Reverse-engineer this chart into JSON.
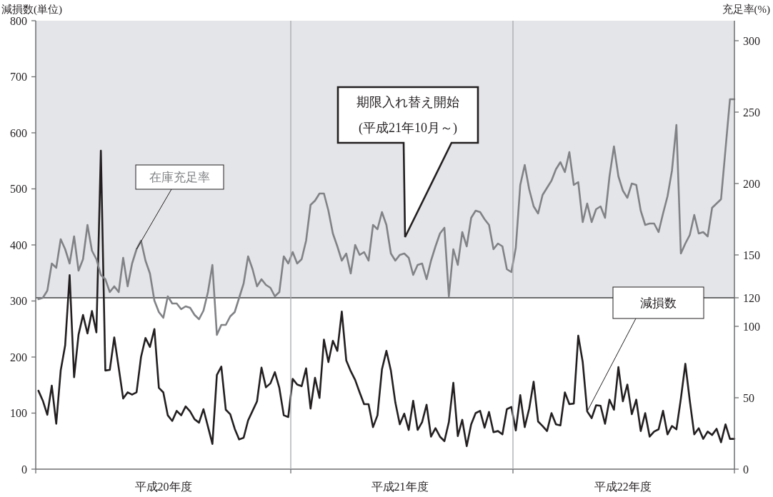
{
  "chart_data": {
    "type": "line",
    "ylabel": "減損数(単位)",
    "y2label": "充足率(%)",
    "categories": [
      null,
      null,
      null,
      null,
      null,
      null,
      null,
      null,
      null,
      null,
      null,
      null,
      null,
      null,
      null,
      null,
      null,
      null,
      null,
      null,
      null,
      null,
      null,
      null,
      null,
      null,
      null,
      null,
      "平成20年度",
      null,
      null,
      null,
      null,
      null,
      null,
      null,
      null,
      null,
      null,
      null,
      null,
      null,
      null,
      null,
      null,
      null,
      null,
      null,
      null,
      null,
      null,
      null,
      null,
      null,
      null,
      null,
      null,
      null,
      null,
      null,
      null,
      null,
      null,
      null,
      null,
      null,
      null,
      null,
      null,
      null,
      null,
      null,
      null,
      null,
      null,
      null,
      null,
      null,
      null,
      null,
      null,
      "平成21年度",
      null,
      null,
      null,
      null,
      null,
      null,
      null,
      null,
      null,
      null,
      null,
      null,
      null,
      null,
      null,
      null,
      null,
      null,
      null,
      null,
      null,
      null,
      null,
      null,
      null,
      null,
      null,
      null,
      null,
      null,
      null,
      null,
      null,
      null,
      null,
      null,
      null,
      null,
      null,
      null,
      null,
      null,
      null,
      null,
      null,
      null,
      null,
      null,
      null,
      "平成22年度",
      null,
      null,
      null,
      null,
      null,
      null,
      null,
      null,
      null,
      null,
      null,
      null,
      null,
      null,
      null,
      null,
      null,
      null,
      null,
      null,
      null,
      null,
      null,
      null,
      null
    ],
    "ylim": [
      0,
      800
    ],
    "yticks": [
      0,
      100,
      200,
      300,
      400,
      500,
      600,
      700,
      800
    ],
    "y2lim": [
      0,
      314
    ],
    "y2ticks": [
      0,
      50,
      100,
      120,
      150,
      200,
      250,
      300
    ],
    "bands": [
      {
        "axis": "y2",
        "from": 120,
        "to": 314,
        "color": "#e4e5e8"
      }
    ],
    "ref_lines": [
      {
        "axis": "y2",
        "value": 120,
        "color": "#6d6e70"
      }
    ],
    "series": [
      {
        "name": "減損数",
        "color": "#231f20",
        "values": [
          140,
          122,
          97,
          149,
          81,
          176,
          221,
          346,
          164,
          240,
          275,
          242,
          282,
          244,
          568,
          176,
          177,
          235,
          181,
          126,
          137,
          133,
          137,
          200,
          234,
          218,
          250,
          145,
          137,
          96,
          86,
          104,
          96,
          112,
          103,
          89,
          83,
          107,
          76,
          45,
          168,
          183,
          106,
          98,
          72,
          53,
          56,
          87,
          104,
          121,
          181,
          146,
          153,
          173,
          145,
          96,
          93,
          161,
          151,
          148,
          180,
          108,
          163,
          127,
          231,
          191,
          229,
          211,
          281,
          194,
          175,
          159,
          137,
          116,
          116,
          75,
          96,
          178,
          211,
          176,
          119,
          80,
          99,
          70,
          122,
          70,
          84,
          115,
          58,
          73,
          58,
          50,
          84,
          154,
          59,
          88,
          41,
          80,
          100,
          104,
          74,
          102,
          66,
          68,
          62,
          107,
          111,
          69,
          132,
          75,
          108,
          156,
          85,
          77,
          68,
          100,
          80,
          78,
          137,
          116,
          117,
          238,
          191,
          103,
          91,
          114,
          113,
          81,
          124,
          106,
          182,
          121,
          151,
          98,
          124,
          68,
          100,
          58,
          67,
          71,
          104,
          62,
          77,
          71,
          126,
          188,
          122,
          62,
          73,
          54,
          67,
          61,
          72,
          48,
          80,
          54,
          54
        ]
      },
      {
        "name": "在庫充足率",
        "color": "#808285",
        "axis": "y2",
        "values": [
          119,
          120,
          125,
          144,
          141,
          161,
          154,
          144,
          163,
          139,
          147,
          171,
          153,
          147,
          136,
          133,
          124,
          128,
          124,
          148,
          128,
          144,
          154,
          160,
          146,
          137,
          118,
          110,
          106,
          121,
          116,
          116,
          112,
          114,
          113,
          108,
          105,
          111,
          124,
          143,
          94,
          101,
          101,
          107,
          110,
          120,
          130,
          149,
          140,
          128,
          133,
          129,
          127,
          121,
          124,
          149,
          144,
          152,
          144,
          147,
          160,
          185,
          188,
          193,
          193,
          181,
          165,
          156,
          146,
          151,
          137,
          157,
          150,
          152,
          146,
          171,
          168,
          180,
          171,
          151,
          146,
          150,
          151,
          148,
          136,
          143,
          144,
          133,
          146,
          156,
          165,
          169,
          121,
          154,
          143,
          166,
          156,
          176,
          181,
          180,
          175,
          171,
          154,
          158,
          156,
          140,
          138,
          155,
          199,
          213,
          196,
          184,
          179,
          192,
          197,
          202,
          210,
          215,
          208,
          222,
          199,
          201,
          173,
          186,
          173,
          182,
          184,
          176,
          205,
          226,
          205,
          195,
          190,
          200,
          199,
          181,
          171,
          172,
          172,
          166,
          179,
          191,
          209,
          241,
          151,
          158,
          164,
          178,
          165,
          166,
          163,
          183,
          186,
          189,
          224,
          259,
          259
        ]
      }
    ],
    "annotations": [
      "期限入れ替え開始\n(平成21年10月～)"
    ]
  }
}
